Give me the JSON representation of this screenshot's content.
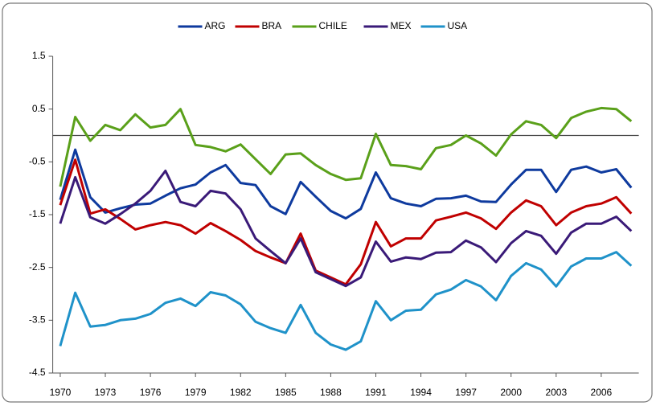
{
  "chart_data": {
    "type": "line",
    "x": [
      1970,
      1971,
      1972,
      1973,
      1974,
      1975,
      1976,
      1977,
      1978,
      1979,
      1980,
      1981,
      1982,
      1983,
      1984,
      1985,
      1986,
      1987,
      1988,
      1989,
      1990,
      1991,
      1992,
      1993,
      1994,
      1995,
      1996,
      1997,
      1998,
      1999,
      2000,
      2001,
      2002,
      2003,
      2004,
      2005,
      2006,
      2007,
      2008
    ],
    "series": [
      {
        "name": "ARG",
        "color": "#0e3a9e",
        "values": [
          -1.22,
          -0.27,
          -1.17,
          -1.46,
          -1.38,
          -1.31,
          -1.29,
          -1.14,
          -1.0,
          -0.93,
          -0.7,
          -0.56,
          -0.9,
          -0.94,
          -1.34,
          -1.49,
          -0.88,
          -1.16,
          -1.43,
          -1.57,
          -1.39,
          -0.7,
          -1.19,
          -1.29,
          -1.34,
          -1.2,
          -1.19,
          -1.14,
          -1.25,
          -1.26,
          -0.93,
          -0.65,
          -0.65,
          -1.07,
          -0.65,
          -0.59,
          -0.7,
          -0.64,
          -0.99
        ]
      },
      {
        "name": "BRA",
        "color": "#c00000",
        "values": [
          -1.32,
          -0.46,
          -1.48,
          -1.4,
          -1.58,
          -1.78,
          -1.7,
          -1.64,
          -1.7,
          -1.86,
          -1.66,
          -1.81,
          -1.98,
          -2.19,
          -2.31,
          -2.42,
          -1.86,
          -2.56,
          -2.69,
          -2.82,
          -2.44,
          -1.64,
          -2.1,
          -1.95,
          -1.95,
          -1.61,
          -1.54,
          -1.46,
          -1.57,
          -1.77,
          -1.46,
          -1.23,
          -1.34,
          -1.7,
          -1.46,
          -1.34,
          -1.29,
          -1.17,
          -1.48
        ]
      },
      {
        "name": "CHILE",
        "color": "#5aa01a",
        "values": [
          -0.97,
          0.35,
          -0.1,
          0.2,
          0.1,
          0.4,
          0.15,
          0.2,
          0.5,
          -0.18,
          -0.22,
          -0.3,
          -0.17,
          -0.45,
          -0.73,
          -0.36,
          -0.34,
          -0.56,
          -0.73,
          -0.84,
          -0.81,
          0.03,
          -0.56,
          -0.58,
          -0.64,
          -0.24,
          -0.18,
          0,
          -0.15,
          -0.38,
          0.02,
          0.27,
          0.2,
          -0.05,
          0.33,
          0.45,
          0.52,
          0.5,
          0.27
        ]
      },
      {
        "name": "MEX",
        "color": "#3a1a78",
        "values": [
          -1.67,
          -0.79,
          -1.55,
          -1.67,
          -1.49,
          -1.29,
          -1.05,
          -0.67,
          -1.26,
          -1.34,
          -1.05,
          -1.1,
          -1.4,
          -1.95,
          -2.19,
          -2.42,
          -1.95,
          -2.59,
          -2.72,
          -2.85,
          -2.69,
          -2.01,
          -2.39,
          -2.31,
          -2.34,
          -2.22,
          -2.21,
          -1.99,
          -2.12,
          -2.4,
          -2.04,
          -1.81,
          -1.9,
          -2.24,
          -1.84,
          -1.67,
          -1.67,
          -1.54,
          -1.81
        ]
      },
      {
        "name": "USA",
        "color": "#1f92c9",
        "values": [
          -3.99,
          -2.98,
          -3.62,
          -3.59,
          -3.5,
          -3.47,
          -3.38,
          -3.17,
          -3.09,
          -3.23,
          -2.97,
          -3.03,
          -3.2,
          -3.53,
          -3.65,
          -3.74,
          -3.21,
          -3.74,
          -3.96,
          -4.06,
          -3.9,
          -3.14,
          -3.5,
          -3.32,
          -3.3,
          -3.01,
          -2.92,
          -2.74,
          -2.86,
          -3.12,
          -2.66,
          -2.42,
          -2.54,
          -2.86,
          -2.48,
          -2.33,
          -2.33,
          -2.21,
          -2.47
        ]
      }
    ],
    "xlim": [
      1969.5,
      2008.5
    ],
    "xticks": [
      1970,
      1973,
      1976,
      1979,
      1982,
      1985,
      1988,
      1991,
      1994,
      1997,
      2000,
      2003,
      2006
    ],
    "ylim": [
      -4.5,
      1.5
    ],
    "yticks": [
      1.5,
      0.5,
      -0.5,
      -1.5,
      -2.5,
      -3.5,
      -4.5
    ],
    "reference_line": 0,
    "legend": "top"
  }
}
